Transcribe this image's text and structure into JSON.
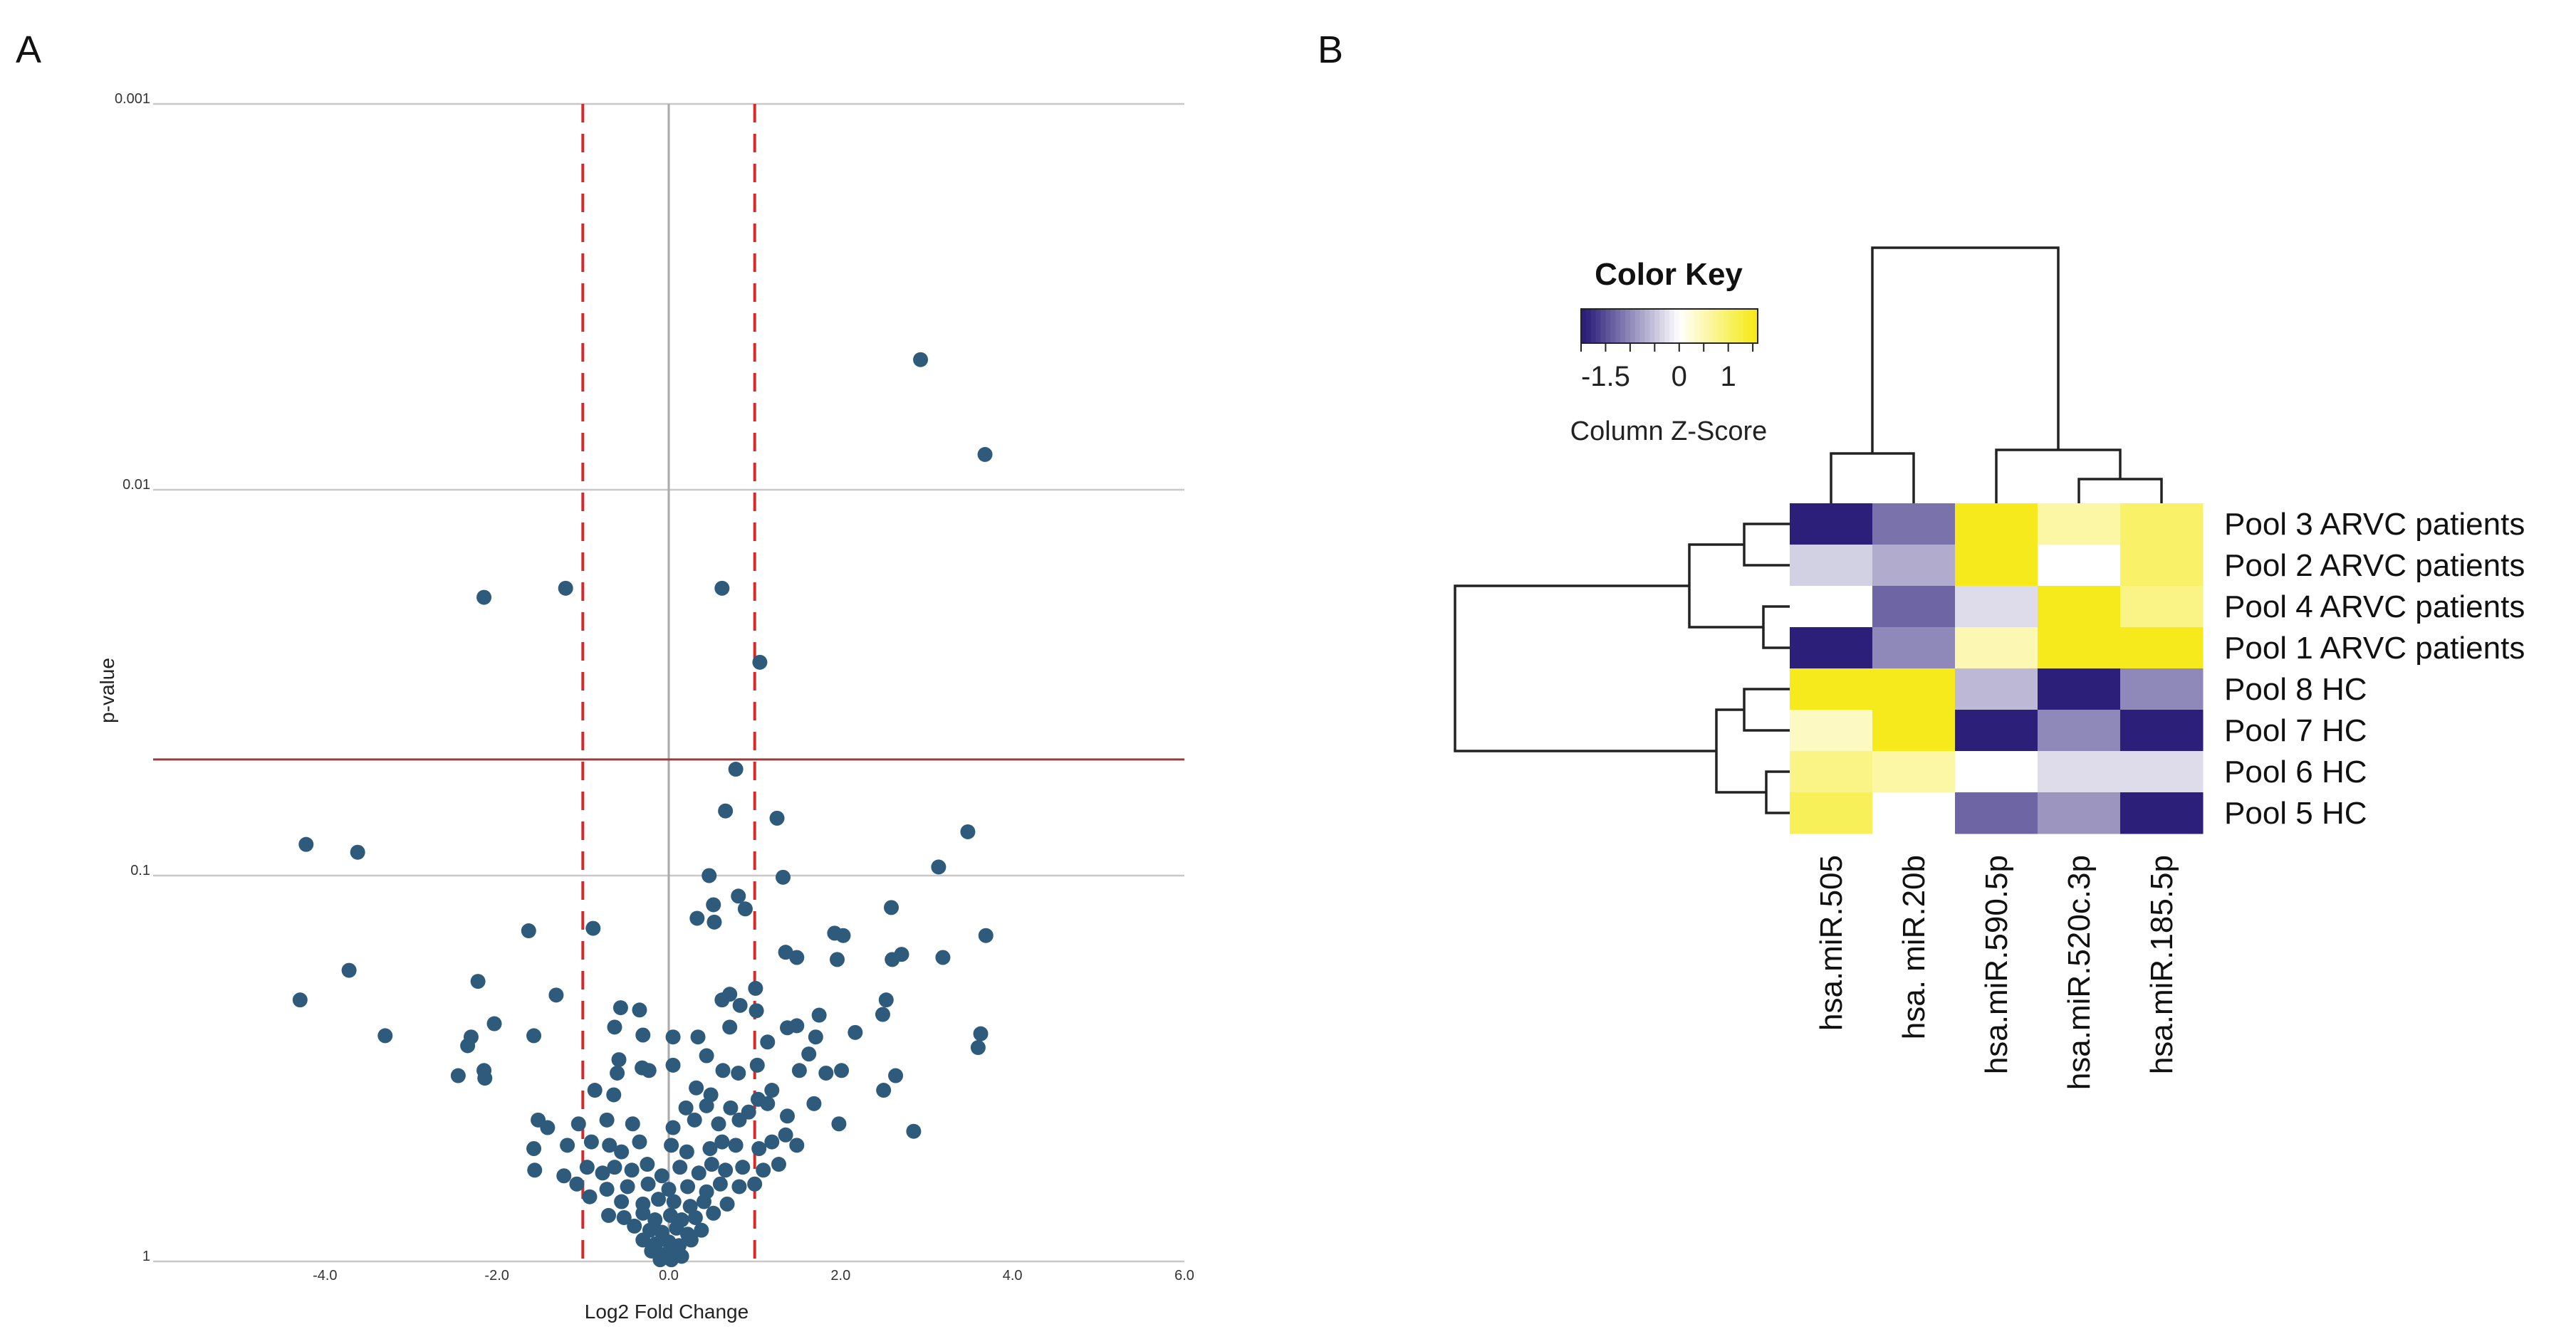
{
  "figure": {
    "panels": {
      "a": "A",
      "b": "B"
    }
  },
  "colors": {
    "point": "#2e5a7c",
    "grid": "#c8c8c8",
    "zero_line": "#aaaaaa",
    "threshold_line": "#a03a3a",
    "fc_dashed_line": "#d42a2a",
    "heat_low": "#2b1f7a",
    "heat_mid": "#ffffff",
    "heat_high": "#f6ea1c",
    "dendrogram": "#222222"
  },
  "chart_data": [
    {
      "type": "scatter",
      "subtype": "volcano",
      "panel": "A",
      "xlabel": "Log2 Fold Change",
      "ylabel": "p-value",
      "xlim": [
        -6.0,
        6.0
      ],
      "x_ticks": [
        -4.0,
        -2.0,
        0.0,
        2.0,
        4.0,
        6.0
      ],
      "x_tick_labels": [
        "-4.0",
        "-2.0",
        "0.0",
        "2.0",
        "4.0",
        "6.0"
      ],
      "y_scale": "log, inverted",
      "ylim": [
        1,
        0.001
      ],
      "y_ticks": [
        0.001,
        0.01,
        0.1,
        1
      ],
      "y_tick_labels": [
        "0.001",
        "0.01",
        "0.1",
        "1"
      ],
      "grid": true,
      "significance_threshold_p": 0.05,
      "fold_change_cutoffs": [
        -1.0,
        1.0
      ],
      "points": [
        [
          2.93,
          0.0046
        ],
        [
          3.68,
          0.0081
        ],
        [
          -2.15,
          0.019
        ],
        [
          -1.2,
          0.018
        ],
        [
          0.62,
          0.018
        ],
        [
          1.06,
          0.028
        ],
        [
          0.78,
          0.053
        ],
        [
          0.66,
          0.068
        ],
        [
          1.26,
          0.071
        ],
        [
          -4.22,
          0.083
        ],
        [
          -3.62,
          0.087
        ],
        [
          3.48,
          0.077
        ],
        [
          3.14,
          0.095
        ],
        [
          0.47,
          0.1
        ],
        [
          1.33,
          0.101
        ],
        [
          0.81,
          0.113
        ],
        [
          0.52,
          0.119
        ],
        [
          0.89,
          0.122
        ],
        [
          -1.63,
          0.139
        ],
        [
          -0.88,
          0.137
        ],
        [
          0.33,
          0.129
        ],
        [
          0.53,
          0.132
        ],
        [
          1.93,
          0.141
        ],
        [
          2.03,
          0.143
        ],
        [
          3.69,
          0.143
        ],
        [
          2.59,
          0.121
        ],
        [
          2.71,
          0.16
        ],
        [
          2.6,
          0.165
        ],
        [
          3.19,
          0.163
        ],
        [
          1.36,
          0.158
        ],
        [
          1.49,
          0.163
        ],
        [
          1.96,
          0.165
        ],
        [
          -3.72,
          0.176
        ],
        [
          -2.22,
          0.188
        ],
        [
          -4.29,
          0.21
        ],
        [
          -1.31,
          0.204
        ],
        [
          -0.56,
          0.22
        ],
        [
          -0.34,
          0.223
        ],
        [
          1.01,
          0.196
        ],
        [
          0.71,
          0.203
        ],
        [
          0.62,
          0.21
        ],
        [
          0.83,
          0.217
        ],
        [
          1.02,
          0.224
        ],
        [
          2.53,
          0.21
        ],
        [
          2.49,
          0.229
        ],
        [
          1.75,
          0.23
        ],
        [
          -3.3,
          0.26
        ],
        [
          -2.3,
          0.262
        ],
        [
          -2.03,
          0.242
        ],
        [
          -1.57,
          0.26
        ],
        [
          -0.63,
          0.247
        ],
        [
          -0.3,
          0.259
        ],
        [
          0.05,
          0.262
        ],
        [
          0.34,
          0.262
        ],
        [
          0.71,
          0.247
        ],
        [
          1.38,
          0.248
        ],
        [
          1.49,
          0.245
        ],
        [
          1.71,
          0.262
        ],
        [
          2.17,
          0.255
        ],
        [
          3.63,
          0.257
        ],
        [
          3.6,
          0.279
        ],
        [
          -2.34,
          0.276
        ],
        [
          1.15,
          0.27
        ],
        [
          1.63,
          0.29
        ],
        [
          0.44,
          0.293
        ],
        [
          -0.58,
          0.3
        ],
        [
          -0.31,
          0.315
        ],
        [
          0.05,
          0.31
        ],
        [
          -2.15,
          0.32
        ],
        [
          -2.45,
          0.33
        ],
        [
          -2.14,
          0.335
        ],
        [
          -0.6,
          0.325
        ],
        [
          -0.23,
          0.32
        ],
        [
          0.63,
          0.32
        ],
        [
          0.81,
          0.325
        ],
        [
          1.03,
          0.31
        ],
        [
          1.52,
          0.32
        ],
        [
          1.83,
          0.325
        ],
        [
          2.01,
          0.32
        ],
        [
          2.64,
          0.33
        ],
        [
          -0.86,
          0.36
        ],
        [
          -0.64,
          0.37
        ],
        [
          0.32,
          0.355
        ],
        [
          0.49,
          0.37
        ],
        [
          1.2,
          0.36
        ],
        [
          1.04,
          0.38
        ],
        [
          1.69,
          0.39
        ],
        [
          2.5,
          0.36
        ],
        [
          0.2,
          0.4
        ],
        [
          0.44,
          0.395
        ],
        [
          0.72,
          0.4
        ],
        [
          0.93,
          0.41
        ],
        [
          1.15,
          0.39
        ],
        [
          1.38,
          0.42
        ],
        [
          -1.52,
          0.43
        ],
        [
          -1.41,
          0.45
        ],
        [
          -1.05,
          0.44
        ],
        [
          -0.72,
          0.43
        ],
        [
          -0.42,
          0.44
        ],
        [
          0.05,
          0.45
        ],
        [
          0.3,
          0.43
        ],
        [
          0.58,
          0.44
        ],
        [
          0.82,
          0.43
        ],
        [
          1.98,
          0.44
        ],
        [
          2.85,
          0.46
        ],
        [
          -1.57,
          0.51
        ],
        [
          -1.18,
          0.5
        ],
        [
          -0.9,
          0.49
        ],
        [
          -0.69,
          0.5
        ],
        [
          -0.55,
          0.52
        ],
        [
          -0.34,
          0.49
        ],
        [
          0.03,
          0.5
        ],
        [
          0.21,
          0.52
        ],
        [
          0.48,
          0.51
        ],
        [
          0.62,
          0.49
        ],
        [
          0.78,
          0.5
        ],
        [
          1.05,
          0.51
        ],
        [
          1.2,
          0.49
        ],
        [
          1.36,
          0.47
        ],
        [
          1.49,
          0.5
        ],
        [
          -1.56,
          0.58
        ],
        [
          -1.22,
          0.6
        ],
        [
          -0.95,
          0.57
        ],
        [
          -0.77,
          0.59
        ],
        [
          -0.63,
          0.57
        ],
        [
          -0.43,
          0.58
        ],
        [
          -0.25,
          0.56
        ],
        [
          -0.08,
          0.6
        ],
        [
          0.13,
          0.57
        ],
        [
          0.35,
          0.59
        ],
        [
          0.5,
          0.56
        ],
        [
          0.66,
          0.58
        ],
        [
          0.86,
          0.57
        ],
        [
          1.1,
          0.58
        ],
        [
          1.28,
          0.56
        ],
        [
          -1.07,
          0.63
        ],
        [
          -0.72,
          0.65
        ],
        [
          -0.48,
          0.64
        ],
        [
          -0.24,
          0.63
        ],
        [
          0.0,
          0.65
        ],
        [
          0.22,
          0.64
        ],
        [
          0.44,
          0.66
        ],
        [
          0.6,
          0.63
        ],
        [
          0.82,
          0.64
        ],
        [
          1.0,
          0.63
        ],
        [
          -0.92,
          0.68
        ],
        [
          -0.55,
          0.7
        ],
        [
          -0.3,
          0.71
        ],
        [
          -0.12,
          0.69
        ],
        [
          0.06,
          0.7
        ],
        [
          0.25,
          0.72
        ],
        [
          0.41,
          0.7
        ],
        [
          0.68,
          0.71
        ],
        [
          -0.7,
          0.76
        ],
        [
          -0.52,
          0.77
        ],
        [
          -0.3,
          0.75
        ],
        [
          -0.16,
          0.78
        ],
        [
          0.02,
          0.76
        ],
        [
          0.15,
          0.78
        ],
        [
          0.31,
          0.77
        ],
        [
          0.52,
          0.75
        ],
        [
          -0.4,
          0.81
        ],
        [
          -0.22,
          0.83
        ],
        [
          -0.08,
          0.84
        ],
        [
          0.09,
          0.82
        ],
        [
          0.22,
          0.85
        ],
        [
          0.38,
          0.83
        ],
        [
          -0.3,
          0.88
        ],
        [
          -0.15,
          0.9
        ],
        [
          0.0,
          0.89
        ],
        [
          0.12,
          0.91
        ],
        [
          0.26,
          0.88
        ],
        [
          -0.2,
          0.94
        ],
        [
          -0.05,
          0.96
        ],
        [
          0.08,
          0.95
        ],
        [
          -0.1,
          0.99
        ],
        [
          0.03,
          0.99
        ],
        [
          0.15,
          0.97
        ]
      ]
    },
    {
      "type": "heatmap",
      "panel": "B",
      "color_key": {
        "title": "Color Key",
        "label": "Column Z-Score",
        "tick_values": [
          -1.5,
          0,
          1
        ],
        "tick_labels": [
          "-1.5",
          "0",
          "1"
        ],
        "range": [
          -2,
          1.6
        ]
      },
      "rows": [
        "Pool 3 ARVC patients",
        "Pool 2 ARVC patients",
        "Pool 4 ARVC patients",
        "Pool 1 ARVC patients",
        "Pool 8 HC",
        "Pool 7 HC",
        "Pool 6 HC",
        "Pool 5 HC"
      ],
      "columns": [
        "hsa.miR.505",
        "hsa. miR.20b",
        "hsa.miR.590.5p",
        "hsa.miR.520c.3p",
        "hsa.miR.185.5p"
      ],
      "values": [
        [
          -1.9,
          -1.2,
          1.5,
          0.6,
          1.0
        ],
        [
          -0.4,
          -0.7,
          1.5,
          0.0,
          1.0
        ],
        [
          0.0,
          -1.3,
          -0.3,
          1.5,
          0.8
        ],
        [
          -1.9,
          -1.0,
          0.5,
          1.5,
          1.5
        ],
        [
          1.5,
          1.5,
          -0.6,
          -1.9,
          -1.0
        ],
        [
          0.4,
          1.5,
          -1.9,
          -1.0,
          -1.9
        ],
        [
          0.8,
          0.6,
          0.0,
          -0.3,
          -0.3
        ],
        [
          1.1,
          0.0,
          -1.3,
          -0.9,
          -1.9
        ]
      ],
      "row_dendrogram": "((Pool 3,Pool 2),(Pool 4,Pool 1)),((Pool 8,Pool 7),(Pool 6,Pool 5))",
      "column_dendrogram": "(hsa.miR.505,hsa. miR.20b),(hsa.miR.590.5p,(hsa.miR.520c.3p,hsa.miR.185.5p))"
    }
  ]
}
